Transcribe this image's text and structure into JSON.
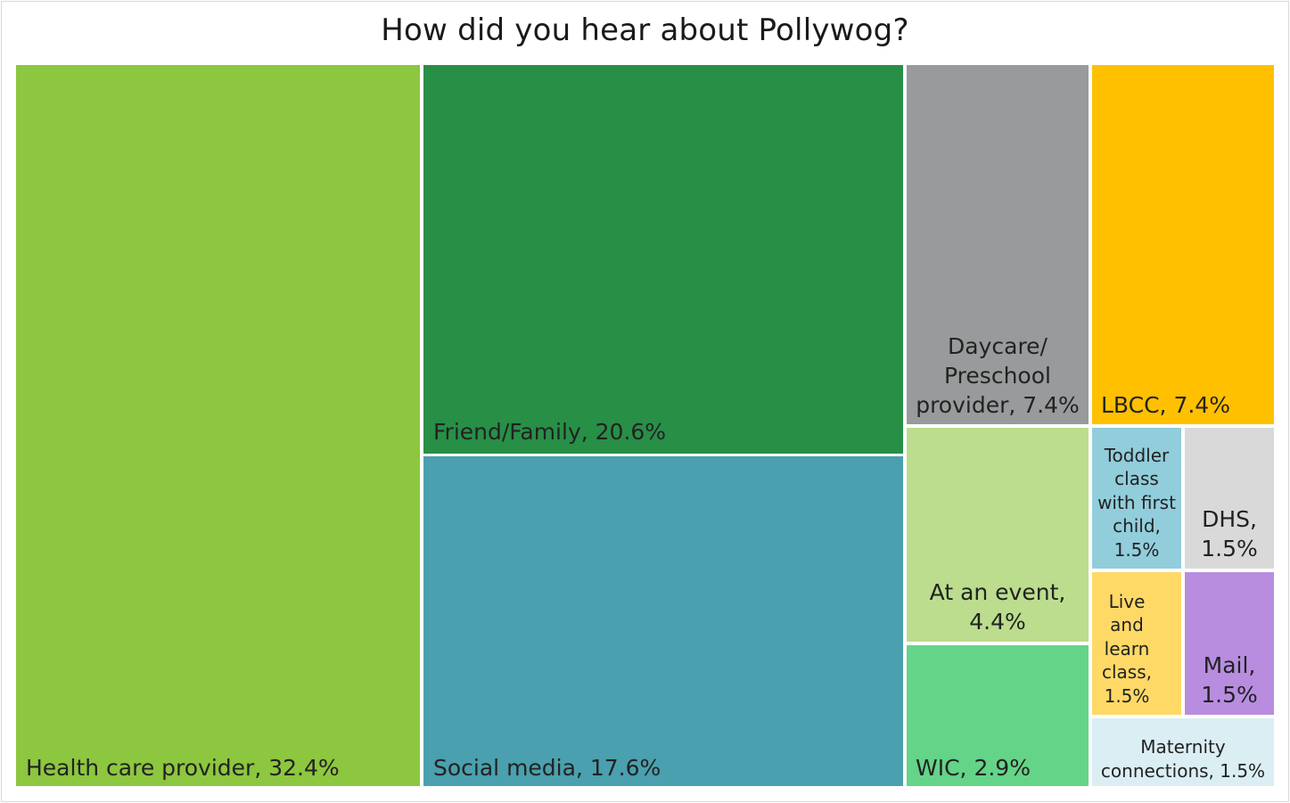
{
  "chart_data": {
    "type": "treemap",
    "title": "How did you hear about Pollywog?",
    "items": [
      {
        "name": "Health care provider",
        "value": 32.4,
        "label": "Health care provider, 32.4%",
        "color": "#8DC63F"
      },
      {
        "name": "Friend/Family",
        "value": 20.6,
        "label": "Friend/Family, 20.6%",
        "color": "#288F47"
      },
      {
        "name": "Social media",
        "value": 17.6,
        "label": "Social media, 17.6%",
        "color": "#4AA0AE"
      },
      {
        "name": "Daycare/ Preschool provider",
        "value": 7.4,
        "label": "Daycare/ Preschool provider, 7.4%",
        "color": "#999A9B"
      },
      {
        "name": "LBCC",
        "value": 7.4,
        "label": "LBCC, 7.4%",
        "color": "#FFC000"
      },
      {
        "name": "At an event",
        "value": 4.4,
        "label": "At an event, 4.4%",
        "color": "#BBDD8D"
      },
      {
        "name": "WIC",
        "value": 2.9,
        "label": "WIC, 2.9%",
        "color": "#64D488"
      },
      {
        "name": "Toddler class with first child",
        "value": 1.5,
        "label": "Toddler class with first child, 1.5%",
        "color": "#92CDDC"
      },
      {
        "name": "DHS",
        "value": 1.5,
        "label": "DHS, 1.5%",
        "color": "#D9D9D9"
      },
      {
        "name": "Live and learn class",
        "value": 1.5,
        "label": "Live and learn class, 1.5%",
        "color": "#FFD966"
      },
      {
        "name": "Mail",
        "value": 1.5,
        "label": "Mail, 1.5%",
        "color": "#B88DDF"
      },
      {
        "name": "Maternity connections",
        "value": 1.5,
        "label": "Maternity connections, 1.5%",
        "color": "#DAEEF3"
      }
    ]
  }
}
